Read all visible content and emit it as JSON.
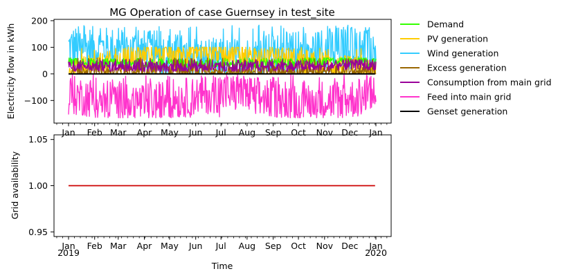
{
  "chart_data": [
    {
      "type": "line",
      "title": "MG Operation of case Guernsey in test_site",
      "ylabel": "Electricity flow in kWh",
      "xlabel": "",
      "ylim": [
        -185,
        205
      ],
      "yticks": [
        -100,
        0,
        100,
        200
      ],
      "x_range": [
        "2019-01-01",
        "2020-01-01"
      ],
      "grid": false,
      "legend_placement": "outside-right",
      "series": [
        {
          "name": "Demand",
          "color": "#33ff00",
          "values": [
            {
              "x": "2019-01-01",
              "y": 45
            },
            {
              "x": "2019-03-01",
              "y": 42
            },
            {
              "x": "2019-06-01",
              "y": 38
            },
            {
              "x": "2019-09-01",
              "y": 40
            },
            {
              "x": "2019-11-15",
              "y": 50
            },
            {
              "x": "2019-12-31",
              "y": 48
            }
          ],
          "band": [
            25,
            60
          ]
        },
        {
          "name": "PV generation",
          "color": "#ffcc00",
          "values": [
            {
              "x": "2019-01-01",
              "y": 8
            },
            {
              "x": "2019-04-01",
              "y": 70
            },
            {
              "x": "2019-06-15",
              "y": 90
            },
            {
              "x": "2019-09-01",
              "y": 65
            },
            {
              "x": "2019-12-31",
              "y": 8
            }
          ],
          "band": [
            0,
            100
          ]
        },
        {
          "name": "Wind generation",
          "color": "#33ccff",
          "values": [
            {
              "x": "2019-01-01",
              "y": 100
            },
            {
              "x": "2019-03-15",
              "y": 90
            },
            {
              "x": "2019-07-01",
              "y": 50
            },
            {
              "x": "2019-10-01",
              "y": 80
            },
            {
              "x": "2019-12-31",
              "y": 110
            }
          ],
          "band": [
            0,
            185
          ]
        },
        {
          "name": "Excess generation",
          "color": "#996600",
          "values": [
            {
              "x": "2019-01-01",
              "y": 5
            },
            {
              "x": "2019-06-15",
              "y": 10
            },
            {
              "x": "2019-12-31",
              "y": 5
            }
          ],
          "band": [
            0,
            60
          ]
        },
        {
          "name": "Consumption from main grid",
          "color": "#990099",
          "values": [
            {
              "x": "2019-01-01",
              "y": 30
            },
            {
              "x": "2019-06-15",
              "y": 25
            },
            {
              "x": "2019-12-31",
              "y": 35
            }
          ],
          "band": [
            10,
            55
          ]
        },
        {
          "name": "Feed into main grid",
          "color": "#ff33cc",
          "values": [
            {
              "x": "2019-01-01",
              "y": -80
            },
            {
              "x": "2019-04-01",
              "y": -110
            },
            {
              "x": "2019-07-01",
              "y": -70
            },
            {
              "x": "2019-10-01",
              "y": -100
            },
            {
              "x": "2019-12-31",
              "y": -90
            }
          ],
          "band": [
            -165,
            0
          ]
        },
        {
          "name": "Genset generation",
          "color": "#000000",
          "values": [
            {
              "x": "2019-01-01",
              "y": 0
            },
            {
              "x": "2019-12-31",
              "y": 0
            }
          ]
        }
      ]
    },
    {
      "type": "line",
      "title": "",
      "xlabel": "Time",
      "ylabel": "Grid availability",
      "ylim": [
        0.945,
        1.055
      ],
      "yticks": [
        0.95,
        1.0,
        1.05
      ],
      "ytick_labels": [
        "0.95",
        "1.00",
        "1.05"
      ],
      "x_range": [
        "2019-01-01",
        "2020-01-01"
      ],
      "grid": false,
      "series": [
        {
          "color": "#cc0000",
          "values": [
            {
              "x": "2019-01-01",
              "y": 1.0
            },
            {
              "x": "2019-12-31",
              "y": 1.0
            }
          ]
        }
      ]
    }
  ],
  "xaxis": {
    "month_labels": [
      "Jan",
      "Feb",
      "Mar",
      "Apr",
      "May",
      "Jun",
      "Jul",
      "Aug",
      "Sep",
      "Oct",
      "Nov",
      "Dec",
      "Jan"
    ],
    "year_start": "2019",
    "year_end": "2020"
  },
  "colors": {
    "axis": "#000000",
    "background": "#ffffff"
  }
}
